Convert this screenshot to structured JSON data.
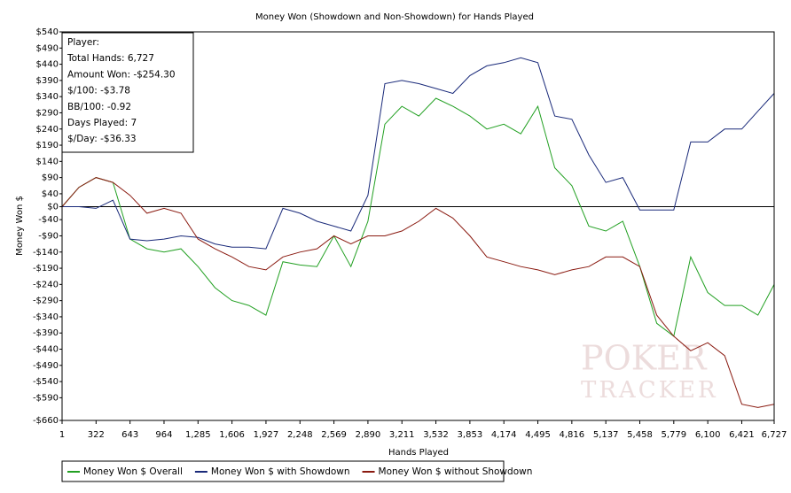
{
  "chart_data": {
    "type": "line",
    "title": "Money Won (Showdown and Non-Showdown) for Hands Played",
    "xlabel": "Hands Played",
    "ylabel": "Money Won $",
    "annotations": [
      "Player:",
      "Total Hands: 6,727",
      "Amount Won: -$254.30",
      "$/100: -$3.78",
      "BB/100: -0.92",
      "Days Played: 7",
      "$/Day: -$36.33"
    ],
    "watermark": [
      "POKER",
      "TRACKER"
    ],
    "zero_line": true,
    "grid": false,
    "legend": "bottom",
    "x": [
      1,
      161,
      322,
      482,
      643,
      803,
      964,
      1124,
      1285,
      1445,
      1606,
      1766,
      1927,
      2087,
      2248,
      2408,
      2569,
      2729,
      2890,
      3050,
      3211,
      3371,
      3532,
      3692,
      3853,
      4013,
      4174,
      4334,
      4495,
      4655,
      4816,
      4976,
      5137,
      5297,
      5458,
      5618,
      5779,
      5939,
      6100,
      6260,
      6421,
      6574,
      6727
    ],
    "series": [
      {
        "name": "Money Won $ Overall",
        "color": "#22a022",
        "values": [
          0,
          60,
          90,
          75,
          -100,
          -130,
          -140,
          -130,
          -185,
          -250,
          -290,
          -305,
          -335,
          -170,
          -180,
          -185,
          -90,
          -185,
          -45,
          255,
          310,
          280,
          335,
          310,
          280,
          240,
          255,
          225,
          310,
          120,
          65,
          -60,
          -75,
          -45,
          -185,
          -360,
          -400,
          -155,
          -265,
          -305,
          -305,
          -335,
          -240
        ]
      },
      {
        "name": "Money Won $ with Showdown",
        "color": "#1a2a7a",
        "values": [
          0,
          0,
          -5,
          20,
          -100,
          -105,
          -100,
          -90,
          -95,
          -115,
          -125,
          -125,
          -130,
          -5,
          -20,
          -45,
          -60,
          -75,
          35,
          380,
          390,
          380,
          365,
          350,
          405,
          435,
          445,
          460,
          445,
          280,
          270,
          160,
          75,
          90,
          -10,
          -10,
          -10,
          200,
          200,
          240,
          240,
          295,
          350
        ]
      },
      {
        "name": "Money Won $ without Showdown",
        "color": "#8a1a10",
        "values": [
          0,
          60,
          90,
          75,
          35,
          -20,
          -5,
          -20,
          -100,
          -130,
          -155,
          -185,
          -195,
          -155,
          -140,
          -130,
          -90,
          -115,
          -90,
          -90,
          -75,
          -45,
          -5,
          -35,
          -90,
          -155,
          -170,
          -185,
          -195,
          -210,
          -195,
          -185,
          -155,
          -155,
          -185,
          -335,
          -400,
          -445,
          -420,
          -460,
          -610,
          -620,
          -610
        ]
      }
    ],
    "xlim": [
      1,
      6727
    ],
    "xticks": [
      1,
      322,
      643,
      964,
      {
        "value": 1285,
        "label": "1,285"
      },
      {
        "value": 1606,
        "label": "1,606"
      },
      {
        "value": 1927,
        "label": "1,927"
      },
      {
        "value": 2248,
        "label": "2,248"
      },
      {
        "value": 2569,
        "label": "2,569"
      },
      {
        "value": 2890,
        "label": "2,890"
      },
      {
        "value": 3211,
        "label": "3,211"
      },
      {
        "value": 3532,
        "label": "3,532"
      },
      {
        "value": 3853,
        "label": "3,853"
      },
      {
        "value": 4174,
        "label": "4,174"
      },
      {
        "value": 4495,
        "label": "4,495"
      },
      {
        "value": 4816,
        "label": "4,816"
      },
      {
        "value": 5137,
        "label": "5,137"
      },
      {
        "value": 5458,
        "label": "5,458"
      },
      {
        "value": 5779,
        "label": "5,779"
      },
      {
        "value": 6100,
        "label": "6,100"
      },
      {
        "value": 6421,
        "label": "6,421"
      },
      {
        "value": 6727,
        "label": "6,727"
      }
    ],
    "ylim": [
      -660,
      540
    ],
    "yticks": [
      {
        "value": 540,
        "label": "$540"
      },
      {
        "value": 490,
        "label": "$490"
      },
      {
        "value": 440,
        "label": "$440"
      },
      {
        "value": 390,
        "label": "$390"
      },
      {
        "value": 340,
        "label": "$340"
      },
      {
        "value": 290,
        "label": "$290"
      },
      {
        "value": 240,
        "label": "$240"
      },
      {
        "value": 190,
        "label": "$190"
      },
      {
        "value": 140,
        "label": "$140"
      },
      {
        "value": 90,
        "label": "$90"
      },
      {
        "value": 40,
        "label": "$40"
      },
      {
        "value": 0,
        "label": "$0"
      },
      {
        "value": -40,
        "label": "-$40"
      },
      {
        "value": -90,
        "label": "-$90"
      },
      {
        "value": -140,
        "label": "-$140"
      },
      {
        "value": -190,
        "label": "-$190"
      },
      {
        "value": -240,
        "label": "-$240"
      },
      {
        "value": -290,
        "label": "-$290"
      },
      {
        "value": -340,
        "label": "-$340"
      },
      {
        "value": -390,
        "label": "-$390"
      },
      {
        "value": -440,
        "label": "-$440"
      },
      {
        "value": -490,
        "label": "-$490"
      },
      {
        "value": -540,
        "label": "-$540"
      },
      {
        "value": -590,
        "label": "-$590"
      },
      {
        "value": -660,
        "label": "-$660"
      }
    ]
  }
}
